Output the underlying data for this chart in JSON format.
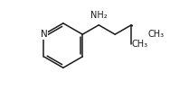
{
  "bg_color": "#ffffff",
  "line_color": "#1a1a1a",
  "line_width": 1.1,
  "font_size": 7.0,
  "fig_width": 1.88,
  "fig_height": 1.01,
  "dpi": 100,
  "atoms": {
    "N_label": "N",
    "NH2_label": "NH₂",
    "CH3_label": "CH₃"
  }
}
